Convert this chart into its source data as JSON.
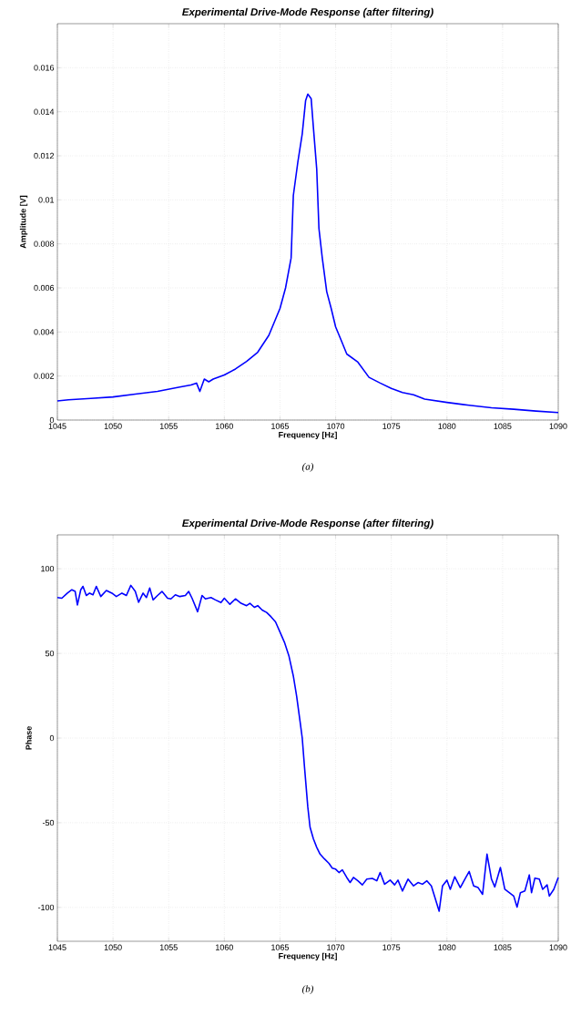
{
  "chart_data": [
    {
      "type": "line",
      "title": "Experimental Drive-Mode Response (after filtering)",
      "xlabel": "Frequency [Hz]",
      "ylabel": "Amplitude [V]",
      "annotations": [
        "(a)"
      ],
      "xlim": [
        1045,
        1090
      ],
      "ylim": [
        0,
        0.018
      ],
      "xticks": [
        1045,
        1050,
        1055,
        1060,
        1065,
        1070,
        1075,
        1080,
        1085,
        1090
      ],
      "yticks": [
        0,
        0.002,
        0.004,
        0.006,
        0.008,
        0.01,
        0.012,
        0.014,
        0.016
      ],
      "grid": true,
      "marker": "none",
      "line_style": "solid",
      "series": [
        {
          "color": "#0000ff",
          "x": [
            1045,
            1046,
            1047,
            1048,
            1050,
            1052,
            1054,
            1056,
            1057,
            1057.5,
            1057.8,
            1058.2,
            1058.6,
            1059,
            1060,
            1061,
            1062,
            1063,
            1064,
            1065,
            1065.5,
            1066,
            1066.2,
            1066.6,
            1067,
            1067.3,
            1067.5,
            1067.8,
            1068,
            1068.3,
            1068.5,
            1068.8,
            1069.2,
            1069.6,
            1070,
            1070.5,
            1071,
            1072,
            1073,
            1074,
            1075,
            1076,
            1077,
            1078,
            1080,
            1082,
            1084,
            1086,
            1088,
            1090
          ],
          "values": [
            0.00087,
            0.00092,
            0.00095,
            0.00098,
            0.00105,
            0.00118,
            0.0013,
            0.0015,
            0.00159,
            0.00168,
            0.0013,
            0.00186,
            0.00174,
            0.00186,
            0.00205,
            0.00232,
            0.00266,
            0.00308,
            0.00385,
            0.00507,
            0.006,
            0.00736,
            0.0102,
            0.0117,
            0.013,
            0.0145,
            0.0148,
            0.0146,
            0.0133,
            0.0114,
            0.0087,
            0.00736,
            0.00583,
            0.00507,
            0.00423,
            0.00362,
            0.003,
            0.00263,
            0.00194,
            0.00168,
            0.00144,
            0.00125,
            0.00115,
            0.00095,
            0.0008,
            0.00067,
            0.00056,
            0.00049,
            0.00041,
            0.00034
          ]
        }
      ]
    },
    {
      "type": "line",
      "title": "Experimental Drive-Mode Response (after filtering)",
      "xlabel": "Frequency [Hz]",
      "ylabel": "Phase",
      "annotations": [
        "(b)"
      ],
      "xlim": [
        1045,
        1090
      ],
      "ylim": [
        -120,
        120
      ],
      "xticks": [
        1045,
        1050,
        1055,
        1060,
        1065,
        1070,
        1075,
        1080,
        1085,
        1090
      ],
      "yticks": [
        -100,
        -50,
        0,
        50,
        100
      ],
      "grid": true,
      "marker": "none",
      "line_style": "solid",
      "series": [
        {
          "color": "#0000ff",
          "x": [
            1045,
            1045.4,
            1045.9,
            1046.3,
            1046.6,
            1046.8,
            1047.1,
            1047.3,
            1047.6,
            1047.9,
            1048.2,
            1048.5,
            1048.9,
            1049.4,
            1049.9,
            1050.3,
            1050.8,
            1051.2,
            1051.6,
            1052,
            1052.3,
            1052.7,
            1053,
            1053.3,
            1053.6,
            1054,
            1054.4,
            1054.9,
            1055.2,
            1055.6,
            1056,
            1056.5,
            1056.8,
            1057.1,
            1057.6,
            1058,
            1058.3,
            1058.8,
            1059.2,
            1059.7,
            1060,
            1060.5,
            1061,
            1061.5,
            1062,
            1062.3,
            1062.7,
            1063,
            1063.4,
            1063.8,
            1064.2,
            1064.6,
            1065,
            1065.4,
            1065.8,
            1066.2,
            1066.5,
            1066.8,
            1067,
            1067.2,
            1067.5,
            1067.7,
            1068,
            1068.3,
            1068.6,
            1069,
            1069.4,
            1069.7,
            1070,
            1070.3,
            1070.6,
            1071,
            1071.3,
            1071.6,
            1072,
            1072.4,
            1072.8,
            1073.3,
            1073.7,
            1074,
            1074.4,
            1074.9,
            1075.3,
            1075.6,
            1076,
            1076.5,
            1077,
            1077.4,
            1077.8,
            1078.2,
            1078.6,
            1079.3,
            1079.6,
            1080,
            1080.3,
            1080.7,
            1081.2,
            1081.7,
            1082,
            1082.4,
            1082.8,
            1083.2,
            1083.6,
            1084,
            1084.3,
            1084.8,
            1085.2,
            1085.6,
            1086,
            1086.3,
            1086.6,
            1087,
            1087.4,
            1087.6,
            1087.9,
            1088.3,
            1088.6,
            1089,
            1089.2,
            1089.6,
            1090
          ],
          "values": [
            83,
            82.6,
            85.6,
            87.6,
            86.6,
            78.6,
            87.6,
            89.6,
            84.2,
            85.6,
            84.6,
            89.6,
            83.6,
            87.2,
            85.6,
            83.6,
            85.6,
            84.2,
            90.2,
            86.6,
            80.2,
            85.6,
            83,
            88.6,
            81.6,
            84.2,
            86.6,
            82.6,
            82.2,
            84.6,
            83.6,
            84.2,
            86.6,
            82.6,
            74.6,
            84.2,
            82.2,
            83,
            81.6,
            80,
            82.6,
            79,
            82.2,
            79.6,
            78.2,
            79.6,
            77.2,
            78.2,
            75.6,
            74.2,
            71.6,
            68.6,
            62.6,
            56.6,
            48.6,
            36.6,
            24.6,
            10,
            0,
            -16.9,
            -40.7,
            -52.6,
            -59.5,
            -64.5,
            -68.5,
            -71.4,
            -74,
            -76.8,
            -77.4,
            -79.4,
            -77.8,
            -82.3,
            -85.3,
            -82.3,
            -84.3,
            -86.7,
            -83.3,
            -82.9,
            -84.3,
            -79.4,
            -86.3,
            -83.9,
            -86.7,
            -83.9,
            -90.3,
            -83.3,
            -87.3,
            -85.3,
            -86.3,
            -84.3,
            -87.3,
            -102.2,
            -87.3,
            -83.9,
            -89.3,
            -81.9,
            -88.3,
            -82.3,
            -78.8,
            -87.3,
            -88.3,
            -92.3,
            -68.5,
            -83.3,
            -87.9,
            -76.4,
            -89.3,
            -91.3,
            -93.3,
            -99.8,
            -91.3,
            -90.3,
            -80.8,
            -91.3,
            -82.7,
            -83.3,
            -89.3,
            -86.7,
            -93.3,
            -89.3,
            -82.3
          ]
        }
      ]
    }
  ]
}
